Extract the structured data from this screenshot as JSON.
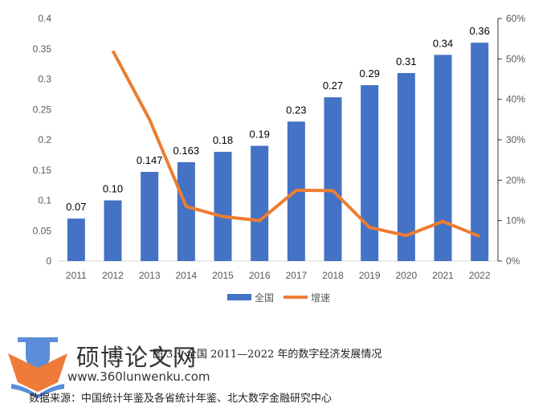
{
  "chart_data": {
    "type": "bar+line",
    "categories": [
      "2011",
      "2012",
      "2013",
      "2014",
      "2015",
      "2016",
      "2017",
      "2018",
      "2019",
      "2020",
      "2021",
      "2022"
    ],
    "series": [
      {
        "name": "全国",
        "type": "bar",
        "axis": "left",
        "color": "#4472C4",
        "values": [
          0.07,
          0.1,
          0.147,
          0.163,
          0.18,
          0.19,
          0.23,
          0.27,
          0.29,
          0.31,
          0.34,
          0.36
        ],
        "labels": [
          "0.07",
          "0.10",
          "0.147",
          "0.163",
          "0.18",
          "0.19",
          "0.23",
          "0.27",
          "0.29",
          "0.31",
          "0.34",
          "0.36"
        ]
      },
      {
        "name": "增速",
        "type": "line",
        "axis": "right",
        "color": "#ED7D31",
        "values": [
          null,
          52,
          35,
          13.5,
          11,
          10,
          17.5,
          17.4,
          8.3,
          6.3,
          9.8,
          6.1
        ]
      }
    ],
    "ylim": [
      0,
      0.4
    ],
    "yticks": [
      "0",
      "0.05",
      "0.1",
      "0.15",
      "0.2",
      "0.25",
      "0.3",
      "0.35",
      "0.4"
    ],
    "y2lim": [
      0,
      60
    ],
    "y2ticks": [
      "0%",
      "10%",
      "20%",
      "30%",
      "40%",
      "50%",
      "60%"
    ],
    "legend": "bottom",
    "grid": false
  },
  "caption": "图 3.1 全国 2011—2022 年的数字经济发展情况",
  "source": "数据来源：中国统计年鉴及各省统计年鉴、北大数字金融研究中心",
  "watermark": {
    "name": "硕博论文网",
    "url": "www.360lunwenku.com"
  }
}
